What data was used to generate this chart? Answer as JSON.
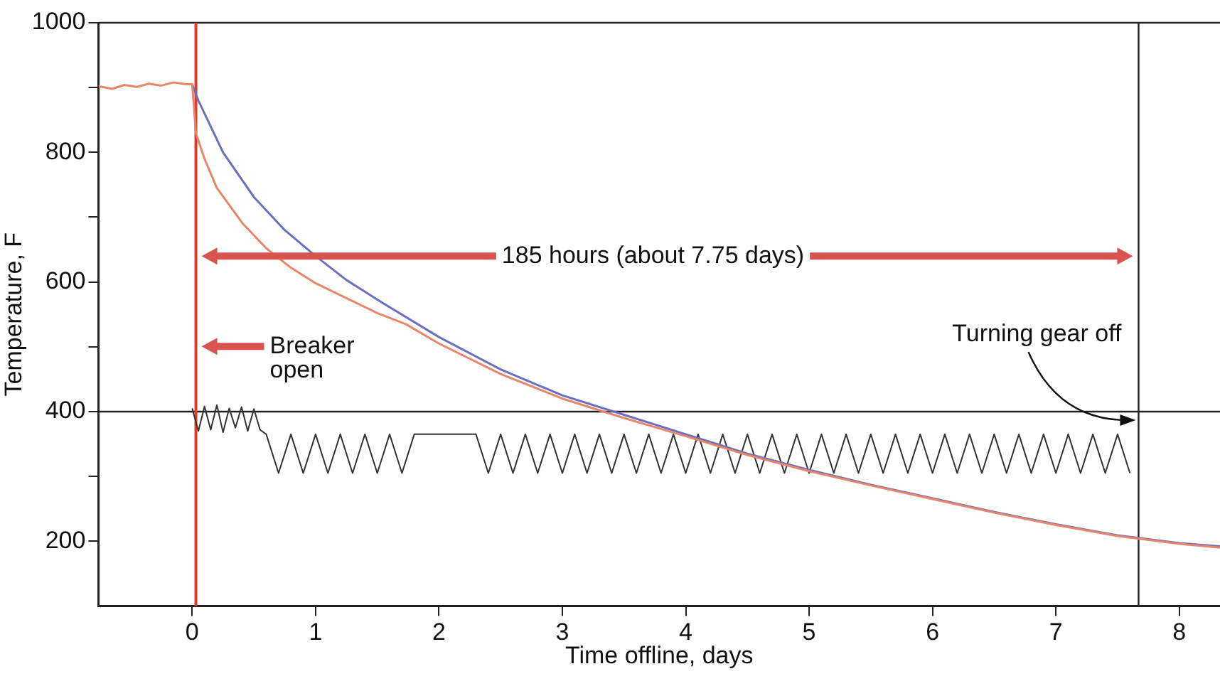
{
  "chart_data": {
    "type": "line",
    "xlabel": "Time offline, days",
    "ylabel": "Temperature, F",
    "xlim": [
      -0.76,
      8.33
    ],
    "xticks": [
      0,
      1,
      2,
      3,
      4,
      5,
      6,
      7,
      8
    ],
    "ylim": [
      100,
      1000
    ],
    "yticks": [
      200,
      {
        "value": 300,
        "label": null
      },
      400,
      {
        "value": 500,
        "label": null
      },
      600,
      {
        "value": 700,
        "label": null
      },
      800,
      {
        "value": 900,
        "label": null
      },
      1000
    ],
    "grid": false,
    "legend": false,
    "marker": "none",
    "line_style": "solid",
    "series": [
      {
        "color": "#e8866a",
        "x": [
          -0.76,
          -0.65,
          -0.55,
          -0.45,
          -0.35,
          -0.25,
          -0.15,
          -0.05,
          0,
          0.03,
          0.1,
          0.2,
          0.41,
          0.6,
          0.8,
          1,
          1.25,
          1.5,
          1.73,
          2,
          2.5,
          3,
          3.5,
          4,
          4.5,
          5,
          5.5,
          6,
          6.5,
          7,
          7.5,
          8,
          8.33
        ],
        "values": [
          902,
          898,
          904,
          901,
          906,
          903,
          908,
          905,
          905,
          830,
          790,
          745,
          690,
          652,
          622,
          598,
          575,
          552,
          535,
          505,
          458,
          420,
          390,
          362,
          333,
          308,
          286,
          265,
          244,
          225,
          208,
          196,
          190
        ]
      },
      {
        "color": "#6a6fc0",
        "x": [
          0,
          0.05,
          0.1,
          0.25,
          0.5,
          0.75,
          1,
          1.25,
          1.54,
          2,
          2.5,
          3,
          3.5,
          4,
          4.5,
          5,
          5.5,
          6,
          6.5,
          7,
          7.5,
          8,
          8.33
        ],
        "values": [
          905,
          880,
          860,
          800,
          731,
          680,
          640,
          603,
          568,
          515,
          465,
          425,
          395,
          365,
          335,
          310,
          287,
          266,
          245,
          226,
          209,
          197,
          192
        ]
      },
      {
        "color": "#333333",
        "x": [
          0,
          0.05,
          0.1,
          0.15,
          0.2,
          0.25,
          0.3,
          0.35,
          0.4,
          0.45,
          0.5,
          0.55,
          0.6,
          0.7,
          0.8,
          0.9,
          1.0,
          1.1,
          1.2,
          1.3,
          1.4,
          1.5,
          1.6,
          1.7,
          1.8,
          1.9,
          2.0,
          2.1,
          2.2,
          2.3,
          2.4,
          2.5,
          2.6,
          2.7,
          2.8,
          2.9,
          3.0,
          3.1,
          3.2,
          3.3,
          3.4,
          3.5,
          3.6,
          3.7,
          3.8,
          3.9,
          4.0,
          4.1,
          4.2,
          4.3,
          4.4,
          4.5,
          4.6,
          4.7,
          4.8,
          4.9,
          5.0,
          5.1,
          5.2,
          5.3,
          5.4,
          5.5,
          5.6,
          5.7,
          5.8,
          5.9,
          6.0,
          6.1,
          6.2,
          6.3,
          6.4,
          6.5,
          6.6,
          6.7,
          6.8,
          6.9,
          7.0,
          7.1,
          7.2,
          7.3,
          7.4,
          7.5,
          7.6
        ],
        "values": [
          405,
          370,
          408,
          372,
          410,
          368,
          405,
          375,
          407,
          370,
          404,
          372,
          365,
          305,
          365,
          305,
          365,
          305,
          365,
          305,
          365,
          305,
          365,
          305,
          365,
          365,
          365,
          365,
          365,
          365,
          305,
          365,
          305,
          365,
          305,
          365,
          305,
          365,
          305,
          365,
          305,
          365,
          305,
          365,
          305,
          365,
          305,
          365,
          305,
          365,
          305,
          365,
          305,
          365,
          305,
          365,
          305,
          365,
          305,
          365,
          305,
          365,
          305,
          365,
          305,
          365,
          305,
          365,
          305,
          365,
          305,
          365,
          305,
          365,
          305,
          365,
          305,
          365,
          305,
          365,
          305,
          365,
          305
        ]
      }
    ],
    "ref_lines": [
      {
        "axis": "y",
        "value": 400,
        "color": "#222222"
      },
      {
        "axis": "x",
        "value": 0.03,
        "color": "#e03a2a"
      },
      {
        "axis": "x",
        "value": 7.67,
        "color": "#222222",
        "label": "Turning gear off"
      }
    ],
    "annotations": [
      "185 hours (about 7.75 days)",
      "Breaker open"
    ]
  }
}
